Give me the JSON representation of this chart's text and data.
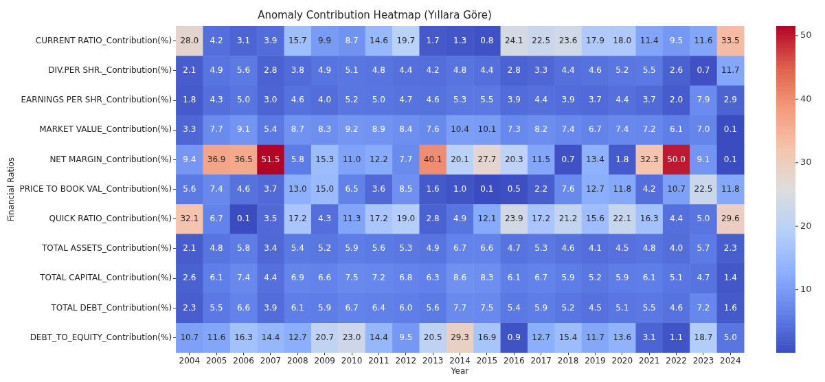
{
  "chart_data": {
    "type": "heatmap",
    "title": "Anomaly Contribution Heatmap (Yıllara Göre)",
    "xlabel": "Year",
    "ylabel": "Financial Ratios",
    "categories": [
      "2004",
      "2005",
      "2006",
      "2007",
      "2008",
      "2009",
      "2010",
      "2011",
      "2012",
      "2013",
      "2014",
      "2015",
      "2016",
      "2017",
      "2018",
      "2019",
      "2020",
      "2021",
      "2022",
      "2023",
      "2024"
    ],
    "y_categories": [
      "CURRENT RATIO_Contribution(%)",
      "DIV.PER SHR._Contribution(%)",
      "EARNINGS PER SHR_Contribution(%)",
      "MARKET VALUE_Contribution(%)",
      "NET MARGIN_Contribution(%)",
      "PRICE TO BOOK VAL_Contribution(%)",
      "QUICK RATIO_Contribution(%)",
      "TOTAL ASSETS_Contribution(%)",
      "TOTAL CAPITAL_Contribution(%)",
      "TOTAL DEBT_Contribution(%)",
      "DEBT_TO_EQUITY_Contribution(%)"
    ],
    "cells": [
      [
        28.0,
        4.2,
        3.1,
        3.9,
        15.7,
        9.9,
        8.7,
        14.6,
        19.7,
        1.7,
        1.3,
        0.8,
        24.1,
        22.5,
        23.6,
        17.9,
        18.0,
        11.4,
        9.5,
        11.6,
        33.5
      ],
      [
        2.1,
        4.9,
        5.6,
        2.8,
        3.8,
        4.9,
        5.1,
        4.8,
        4.4,
        4.2,
        4.8,
        4.4,
        2.8,
        3.3,
        4.4,
        4.6,
        5.2,
        5.5,
        2.6,
        0.7,
        11.7
      ],
      [
        1.8,
        4.3,
        5.0,
        3.0,
        4.6,
        4.0,
        5.2,
        5.0,
        4.7,
        4.6,
        5.3,
        5.5,
        3.9,
        4.4,
        3.9,
        3.7,
        4.4,
        3.7,
        2.0,
        7.9,
        2.9
      ],
      [
        3.3,
        7.7,
        9.1,
        5.4,
        8.7,
        8.3,
        9.2,
        8.9,
        8.4,
        7.6,
        10.4,
        10.1,
        7.3,
        8.2,
        7.4,
        6.7,
        7.4,
        7.2,
        6.1,
        7.0,
        0.1
      ],
      [
        9.4,
        36.9,
        36.5,
        51.5,
        5.8,
        15.3,
        11.0,
        12.2,
        7.7,
        40.1,
        20.1,
        27.7,
        20.3,
        11.5,
        0.7,
        13.4,
        1.8,
        32.3,
        50.0,
        9.1,
        0.1
      ],
      [
        5.6,
        7.4,
        4.6,
        3.7,
        13.0,
        15.0,
        6.5,
        3.6,
        8.5,
        1.6,
        1.0,
        0.1,
        0.5,
        2.2,
        7.6,
        12.7,
        11.8,
        4.2,
        10.7,
        22.5,
        11.8
      ],
      [
        32.1,
        6.7,
        0.1,
        3.5,
        17.2,
        4.3,
        11.3,
        17.2,
        19.0,
        2.8,
        4.9,
        12.1,
        23.9,
        17.2,
        21.2,
        15.6,
        22.1,
        16.3,
        4.4,
        5.0,
        29.6
      ],
      [
        2.1,
        4.8,
        5.8,
        3.4,
        5.4,
        5.2,
        5.9,
        5.6,
        5.3,
        4.9,
        6.7,
        6.6,
        4.7,
        5.3,
        4.6,
        4.1,
        4.5,
        4.8,
        4.0,
        5.7,
        2.3
      ],
      [
        2.6,
        6.1,
        7.4,
        4.4,
        6.9,
        6.6,
        7.5,
        7.2,
        6.8,
        6.3,
        8.6,
        8.3,
        6.1,
        6.7,
        5.9,
        5.2,
        5.9,
        6.1,
        5.1,
        4.7,
        1.4
      ],
      [
        2.3,
        5.5,
        6.6,
        3.9,
        6.1,
        5.9,
        6.7,
        6.4,
        6.0,
        5.6,
        7.7,
        7.5,
        5.4,
        5.9,
        5.2,
        4.5,
        5.1,
        5.5,
        4.6,
        7.2,
        1.6
      ],
      [
        10.7,
        11.6,
        16.3,
        14.4,
        12.7,
        20.7,
        23.0,
        14.4,
        9.5,
        20.5,
        29.3,
        16.9,
        0.9,
        12.7,
        15.4,
        11.7,
        13.6,
        3.1,
        1.1,
        18.7,
        5.0
      ]
    ],
    "cell_labels": [
      [
        "28.0",
        "4.2",
        "3.1",
        "3.9",
        "15.7",
        "9.9",
        "8.7",
        "14.6",
        "19.7",
        "1.7",
        "1.3",
        "0.8",
        "24.1",
        "22.5",
        "23.6",
        "17.9",
        "18.0",
        "11.4",
        "9.5",
        "11.6",
        "33.5"
      ],
      [
        "2.1",
        "4.9",
        "5.6",
        "2.8",
        "3.8",
        "4.9",
        "5.1",
        "4.8",
        "4.4",
        "4.2",
        "4.8",
        "4.4",
        "2.8",
        "3.3",
        "4.4",
        "4.6",
        "5.2",
        "5.5",
        "2.6",
        "0.7",
        "11.7"
      ],
      [
        "1.8",
        "4.3",
        "5.0",
        "3.0",
        "4.6",
        "4.0",
        "5.2",
        "5.0",
        "4.7",
        "4.6",
        "5.3",
        "5.5",
        "3.9",
        "4.4",
        "3.9",
        "3.7",
        "4.4",
        "3.7",
        "2.0",
        "7.9",
        "2.9"
      ],
      [
        "3.3",
        "7.7",
        "9.1",
        "5.4",
        "8.7",
        "8.3",
        "9.2",
        "8.9",
        "8.4",
        "7.6",
        "10.4",
        "10.1",
        "7.3",
        "8.2",
        "7.4",
        "6.7",
        "7.4",
        "7.2",
        "6.1",
        "7.0",
        "0.1"
      ],
      [
        "9.4",
        "36.9",
        "36.5",
        "51.5",
        "5.8",
        "15.3",
        "11.0",
        "12.2",
        "7.7",
        "40.1",
        "20.1",
        "27.7",
        "20.3",
        "11.5",
        "0.7",
        "13.4",
        "1.8",
        "32.3",
        "50.0",
        "9.1",
        "0.1"
      ],
      [
        "5.6",
        "7.4",
        "4.6",
        "3.7",
        "13.0",
        "15.0",
        "6.5",
        "3.6",
        "8.5",
        "1.6",
        "1.0",
        "0.1",
        "0.5",
        "2.2",
        "7.6",
        "12.7",
        "11.8",
        "4.2",
        "10.7",
        "22.5",
        "11.8"
      ],
      [
        "32.1",
        "6.7",
        "0.1",
        "3.5",
        "17.2",
        "4.3",
        "11.3",
        "17.2",
        "19.0",
        "2.8",
        "4.9",
        "12.1",
        "23.9",
        "17.2",
        "21.2",
        "15.6",
        "22.1",
        "16.3",
        "4.4",
        "5.0",
        "29.6"
      ],
      [
        "2.1",
        "4.8",
        "5.8",
        "3.4",
        "5.4",
        "5.2",
        "5.9",
        "5.6",
        "5.3",
        "4.9",
        "6.7",
        "6.6",
        "4.7",
        "5.3",
        "4.6",
        "4.1",
        "4.5",
        "4.8",
        "4.0",
        "5.7",
        "2.3"
      ],
      [
        "2.6",
        "6.1",
        "7.4",
        "4.4",
        "6.9",
        "6.6",
        "7.5",
        "7.2",
        "6.8",
        "6.3",
        "8.6",
        "8.3",
        "6.1",
        "6.7",
        "5.9",
        "5.2",
        "5.9",
        "6.1",
        "5.1",
        "4.7",
        "1.4"
      ],
      [
        "2.3",
        "5.5",
        "6.6",
        "3.9",
        "6.1",
        "5.9",
        "6.7",
        "6.4",
        "6.0",
        "5.6",
        "7.7",
        "7.5",
        "5.4",
        "5.9",
        "5.2",
        "4.5",
        "5.1",
        "5.5",
        "4.6",
        "7.2",
        "1.6"
      ],
      [
        "10.7",
        "11.6",
        "16.3",
        "14.4",
        "12.7",
        "20.7",
        "23.0",
        "14.4",
        "9.5",
        "20.5",
        "29.3",
        "16.9",
        "0.9",
        "12.7",
        "15.4",
        "11.7",
        "13.6",
        "3.1",
        "1.1",
        "18.7",
        "5.0"
      ]
    ],
    "clim": [
      0.1,
      51.5
    ],
    "cticks": [
      10,
      20,
      30,
      40,
      50
    ],
    "data_labels": true
  }
}
